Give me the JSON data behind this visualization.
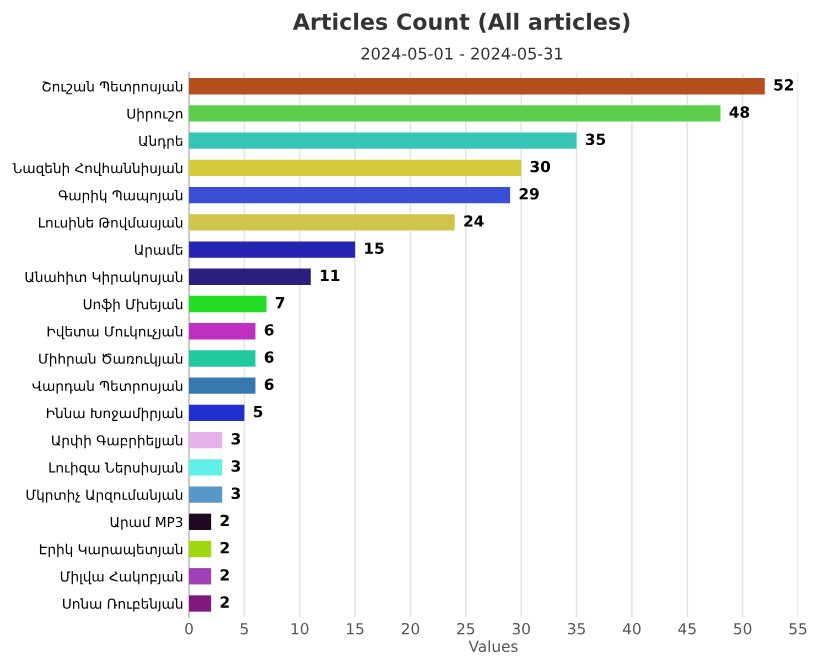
{
  "chart_data": {
    "type": "bar",
    "orientation": "horizontal",
    "title": "Articles Count (All articles)",
    "subtitle": "2024-05-01 - 2024-05-31",
    "xlabel": "Values",
    "categories": [
      "Շուշան Պետրոսյան",
      "Սիրուշո",
      "Անդրե",
      "Նազենի Հովհաննիսյան",
      "Գարիկ Պապոյան",
      "Լուսինե Թովմասյան",
      "Արամե",
      "Անահիտ Կիրակոսյան",
      "Սոֆի Մխեյան",
      "Իվետա Մուկուչյան",
      "Միհրան Ծառուկյան",
      "Վարդան Պետրոսյան",
      "Իննա Խոջամիրյան",
      "Արփի Գաբրիելյան",
      "Լուիզա Ներսիսյան",
      "Մկրտիչ Արզումանյան",
      "Արամ MP3",
      "Էրիկ Կարապետյան",
      "Միլվա Հակոբյան",
      "Սոնա Ռուբենյան"
    ],
    "values": [
      52,
      48,
      35,
      30,
      29,
      24,
      15,
      11,
      7,
      6,
      6,
      6,
      5,
      3,
      3,
      3,
      2,
      2,
      2,
      2
    ],
    "colors": [
      "#b5501e",
      "#5bcf4c",
      "#36c4b4",
      "#d4cb3a",
      "#3a4fd6",
      "#cfc54a",
      "#2424b0",
      "#2b2080",
      "#22dd22",
      "#c030c0",
      "#20c8a0",
      "#3878b0",
      "#2030d0",
      "#e8b0e8",
      "#60f0e8",
      "#5898c8",
      "#200820",
      "#a0d810",
      "#a040b8",
      "#801880"
    ],
    "xlim": [
      0,
      55
    ],
    "xticks": [
      0,
      5,
      10,
      15,
      20,
      25,
      30,
      35,
      40,
      45,
      50,
      55
    ],
    "grid": "x",
    "data_labels": true
  }
}
